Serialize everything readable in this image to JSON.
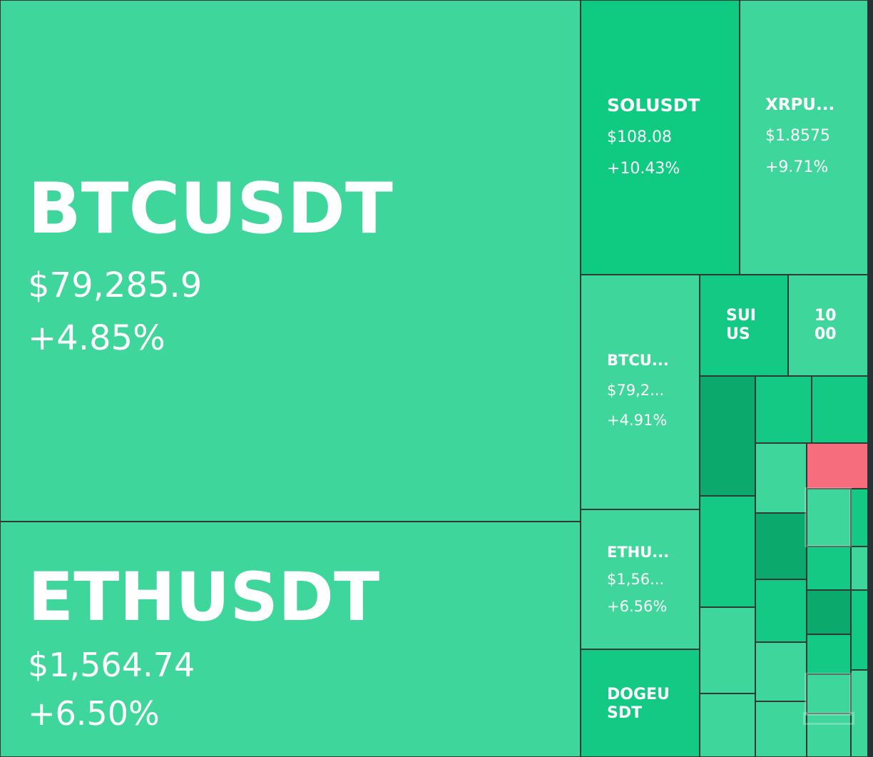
{
  "chart_data": {
    "type": "treemap",
    "colors": {
      "strong_up": "#0ecb81",
      "medium_up": "#13c984",
      "up": "#3fd69c",
      "dark_up": "#0ba96c",
      "down": "#f66d7d"
    },
    "tiles": [
      {
        "symbol": "BTCUSDT",
        "price": "$79,285.9",
        "change": "+4.85%",
        "change_pct": 4.85
      },
      {
        "symbol": "ETHUSDT",
        "price": "$1,564.74",
        "change": "+6.50%",
        "change_pct": 6.5
      },
      {
        "symbol": "SOLUSDT",
        "price": "$108.08",
        "change": "+10.43%",
        "change_pct": 10.43
      },
      {
        "symbol": "XRPU...",
        "price": "$1.8575",
        "change": "+9.71%",
        "change_pct": 9.71
      },
      {
        "symbol": "BTCU...",
        "price": "$79,2...",
        "change": "+4.91%",
        "change_pct": 4.91
      },
      {
        "symbol": "ETHU...",
        "price": "$1,56...",
        "change": "+6.56%",
        "change_pct": 6.56
      },
      {
        "symbol": "DOGEUSDT",
        "price": "",
        "change": ""
      },
      {
        "symbol": "SUIUS",
        "price": "",
        "change": ""
      },
      {
        "symbol": "1000",
        "price": "",
        "change": ""
      }
    ]
  }
}
